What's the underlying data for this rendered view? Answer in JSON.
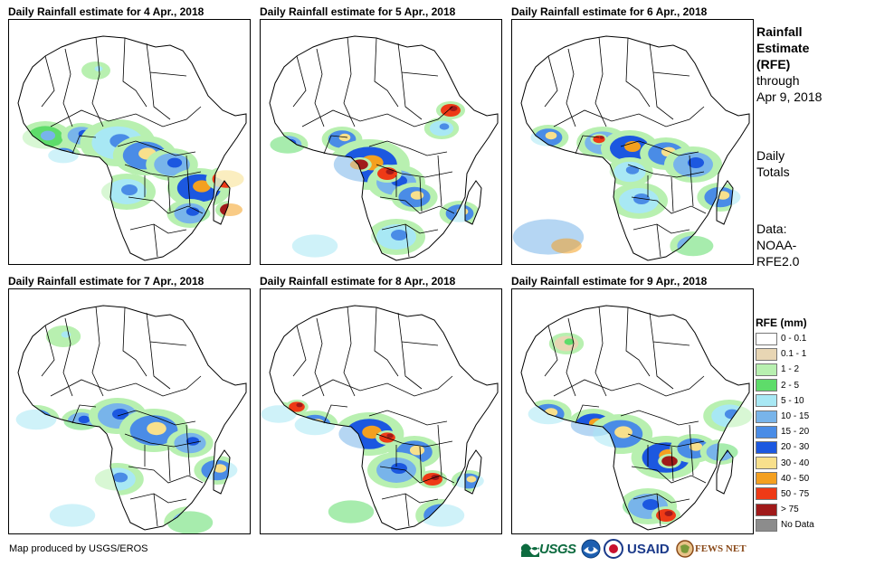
{
  "panels": [
    {
      "title": "Daily Rainfall estimate for 4 Apr., 2018"
    },
    {
      "title": "Daily Rainfall estimate for 5 Apr., 2018"
    },
    {
      "title": "Daily Rainfall estimate for 6 Apr., 2018"
    },
    {
      "title": "Daily Rainfall estimate for 7 Apr., 2018"
    },
    {
      "title": "Daily Rainfall estimate for 8 Apr., 2018"
    },
    {
      "title": "Daily Rainfall estimate for 9 Apr., 2018"
    }
  ],
  "side": {
    "heading_line1": "Rainfall",
    "heading_line2": "Estimate",
    "heading_line3": "(RFE)",
    "through_line1": "through",
    "through_line2": "Apr 9, 2018",
    "totals_line1": "Daily",
    "totals_line2": "Totals",
    "data_line1": "Data:",
    "data_line2": "NOAA-",
    "data_line3": "RFE2.0"
  },
  "legend": {
    "title": "RFE (mm)",
    "items": [
      {
        "label": "0 - 0.1",
        "color": "#ffffff"
      },
      {
        "label": "0.1 - 1",
        "color": "#e8d6b4"
      },
      {
        "label": "1 - 2",
        "color": "#b8f0b0"
      },
      {
        "label": "2 - 5",
        "color": "#5edc6a"
      },
      {
        "label": "5 - 10",
        "color": "#a8e8f4"
      },
      {
        "label": "10 - 15",
        "color": "#78b4ea"
      },
      {
        "label": "15 - 20",
        "color": "#4a8ce6"
      },
      {
        "label": "20 - 30",
        "color": "#1c58e0"
      },
      {
        "label": "30 - 40",
        "color": "#f8e08c"
      },
      {
        "label": "40 - 50",
        "color": "#f4a020"
      },
      {
        "label": "50 - 75",
        "color": "#ee3a16"
      },
      {
        "label": "> 75",
        "color": "#a01a1a"
      },
      {
        "label": "No Data",
        "color": "#8c8c8c"
      }
    ]
  },
  "footer": {
    "credit": "Map produced by USGS/EROS",
    "logo_usgs": "USGS",
    "logo_usaid": "USAID",
    "logo_fews": "FEWS NET"
  }
}
